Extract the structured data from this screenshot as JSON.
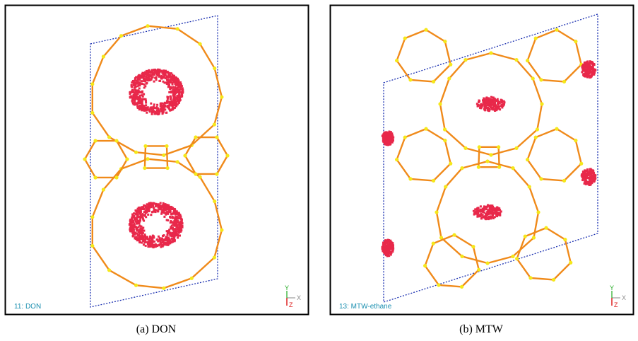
{
  "panels": [
    {
      "label": "11: DON",
      "caption": "(a) DON"
    },
    {
      "label": "13: MTW-ethane",
      "caption": "(b) MTW"
    }
  ],
  "axes": {
    "x": "X",
    "y": "Y",
    "z": "Z"
  }
}
